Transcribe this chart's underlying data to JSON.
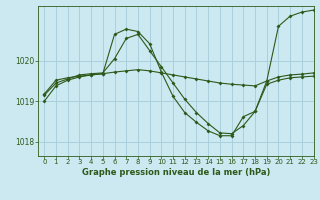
{
  "title": "Graphe pression niveau de la mer (hPa)",
  "background_color": "#cce8f0",
  "grid_color": "#a8d0dc",
  "line_color": "#2d5a1b",
  "xlim": [
    -0.5,
    23
  ],
  "ylim": [
    1017.65,
    1021.35
  ],
  "yticks": [
    1018,
    1019,
    1020
  ],
  "xticks": [
    0,
    1,
    2,
    3,
    4,
    5,
    6,
    7,
    8,
    9,
    10,
    11,
    12,
    13,
    14,
    15,
    16,
    17,
    18,
    19,
    20,
    21,
    22,
    23
  ],
  "series1_x": [
    0,
    1,
    2,
    3,
    4,
    5,
    6,
    7,
    8,
    9,
    10,
    11,
    12,
    13,
    14,
    15,
    16,
    17,
    18,
    19,
    20,
    21,
    22,
    23
  ],
  "series1_y": [
    1019.15,
    1019.45,
    1019.55,
    1019.65,
    1019.68,
    1019.7,
    1020.05,
    1020.55,
    1020.65,
    1020.25,
    1019.85,
    1019.45,
    1019.05,
    1018.72,
    1018.45,
    1018.22,
    1018.2,
    1018.4,
    1018.75,
    1019.5,
    1020.85,
    1021.1,
    1021.2,
    1021.25
  ],
  "series2_x": [
    0,
    1,
    2,
    3,
    4,
    5,
    6,
    7,
    8,
    9,
    10,
    11,
    12,
    13,
    14,
    15,
    16,
    17,
    18,
    19,
    20,
    21,
    22,
    23
  ],
  "series2_y": [
    1019.18,
    1019.52,
    1019.58,
    1019.62,
    1019.65,
    1019.68,
    1019.72,
    1019.75,
    1019.78,
    1019.75,
    1019.7,
    1019.65,
    1019.6,
    1019.55,
    1019.5,
    1019.45,
    1019.42,
    1019.4,
    1019.38,
    1019.5,
    1019.6,
    1019.65,
    1019.67,
    1019.7
  ],
  "series3_x": [
    0,
    1,
    2,
    3,
    4,
    5,
    6,
    7,
    8,
    9,
    10,
    11,
    12,
    13,
    14,
    15,
    16,
    17,
    18,
    19,
    20,
    21,
    22,
    23
  ],
  "series3_y": [
    1019.0,
    1019.38,
    1019.52,
    1019.6,
    1019.65,
    1019.68,
    1020.65,
    1020.78,
    1020.72,
    1020.42,
    1019.72,
    1019.12,
    1018.72,
    1018.48,
    1018.27,
    1018.15,
    1018.15,
    1018.62,
    1018.75,
    1019.42,
    1019.52,
    1019.58,
    1019.6,
    1019.62
  ]
}
